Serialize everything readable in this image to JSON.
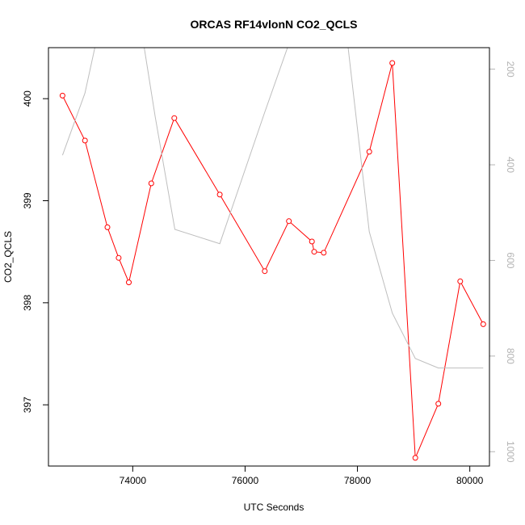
{
  "chart_data": {
    "type": "line",
    "title": "ORCAS RF14vlonN CO2_QCLS",
    "xlabel": "UTC Seconds",
    "ylabel": "CO2_QCLS",
    "y2label": "",
    "xlim": [
      72500,
      80350
    ],
    "ylim": [
      396.4,
      400.5
    ],
    "y2lim": [
      1030,
      155
    ],
    "xticks": [
      74000,
      76000,
      78000,
      80000
    ],
    "yticks": [
      397,
      398,
      399,
      400
    ],
    "y2ticks": [
      200,
      400,
      600,
      800,
      1000
    ],
    "colors": {
      "primary": "#ff0000",
      "secondary": "#bebebe",
      "secondary_axis": "#b3b3b3"
    },
    "series": [
      {
        "axis": "left",
        "style": "line+points",
        "x": [
          72750,
          73150,
          73550,
          73750,
          73930,
          74330,
          74740,
          75550,
          76350,
          76780,
          77190,
          77230,
          77400,
          78210,
          78620,
          79030,
          79440,
          79830,
          80240
        ],
        "y": [
          400.03,
          399.59,
          398.74,
          398.44,
          398.2,
          399.17,
          399.81,
          399.06,
          398.31,
          398.8,
          398.6,
          398.5,
          398.49,
          399.48,
          400.35,
          396.48,
          397.01,
          398.21,
          397.79
        ]
      },
      {
        "axis": "right",
        "style": "line",
        "x": [
          72750,
          73150,
          73400,
          74150,
          74400,
          74750,
          75550,
          76350,
          76950,
          77770,
          78210,
          78620,
          79030,
          79440,
          79830,
          80240
        ],
        "y": [
          380,
          250,
          115,
          115,
          300,
          535,
          565,
          290,
          90,
          90,
          540,
          710,
          805,
          825,
          825,
          825
        ]
      }
    ]
  }
}
